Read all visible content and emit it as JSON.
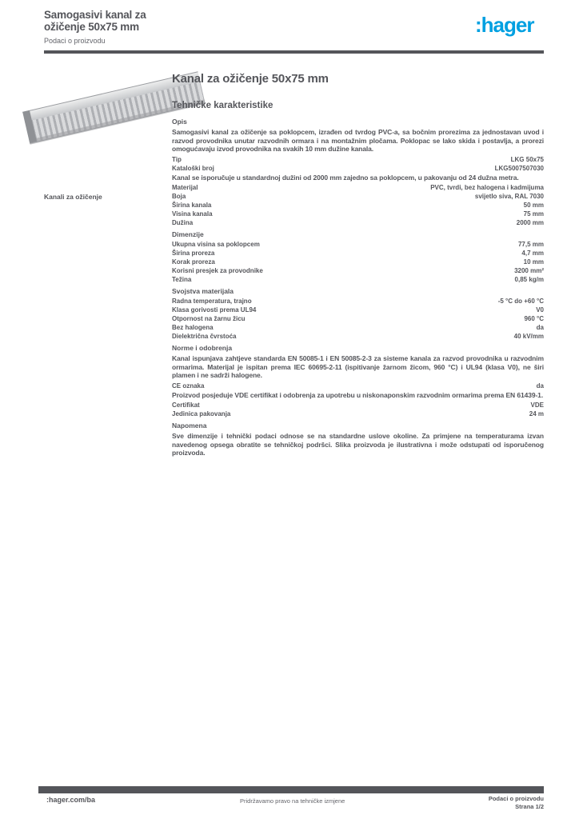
{
  "header": {
    "line1": "Samogasivi kanal za",
    "line2": "ožičenje 50x75 mm",
    "subtitle": "Podaci o proizvodu",
    "logo": ":hager",
    "logo_color": "#00a0e1"
  },
  "sidebar": {
    "category": "Kanali za ožičenje",
    "product_image": "slotted-wiring-duct-with-cover, light gray"
  },
  "main": {
    "title": "Kanal za ožičenje 50x75 mm",
    "section_heading": "Tehničke karakteristike"
  },
  "specs": [
    {
      "t": "head",
      "label": "Opis"
    },
    {
      "t": "para",
      "text": "Samogasivi kanal za ožičenje sa poklopcem, izrađen od tvrdog PVC-a, sa bočnim prorezima za jednostavan uvod i razvod provodnika unutar razvodnih ormara i na montažnim pločama. Poklopac se lako skida i postavlja, a prorezi omogućavaju izvod provodnika na svakih 10 mm dužine kanala."
    },
    {
      "t": "row",
      "label": "Tip",
      "value": "LKG 50x75"
    },
    {
      "t": "row",
      "label": "Kataloški broj",
      "value": "LKG5007507030"
    },
    {
      "t": "para",
      "text": "Kanal se isporučuje u standardnoj dužini od 2000 mm zajedno sa poklopcem, u pakovanju od 24 dužna metra."
    },
    {
      "t": "row",
      "label": "Materijal",
      "value": "PVC, tvrdi, bez halogena i kadmijuma"
    },
    {
      "t": "row",
      "label": "Boja",
      "value": "svijetlo siva, RAL 7030"
    },
    {
      "t": "row",
      "label": "Širina kanala",
      "value": "50 mm"
    },
    {
      "t": "row",
      "label": "Visina kanala",
      "value": "75 mm"
    },
    {
      "t": "row",
      "label": "Dužina",
      "value": "2000 mm"
    },
    {
      "t": "head",
      "label": "Dimenzije"
    },
    {
      "t": "row",
      "label": "Ukupna visina sa poklopcem",
      "value": "77,5 mm"
    },
    {
      "t": "row",
      "label": "Širina proreza",
      "value": "4,7 mm"
    },
    {
      "t": "row",
      "label": "Korak proreza",
      "value": "10 mm"
    },
    {
      "t": "row",
      "label": "Korisni presjek za provodnike",
      "value": "3200 mm²"
    },
    {
      "t": "row",
      "label": "Težina",
      "value": "0,85 kg/m"
    },
    {
      "t": "head",
      "label": "Svojstva materijala"
    },
    {
      "t": "row",
      "label": "Radna temperatura, trajno",
      "value": "-5 °C do +60 °C"
    },
    {
      "t": "row",
      "label": "Klasa gorivosti prema UL94",
      "value": "V0"
    },
    {
      "t": "row",
      "label": "Otpornost na žarnu žicu",
      "value": "960 °C"
    },
    {
      "t": "row",
      "label": "Bez halogena",
      "value": "da"
    },
    {
      "t": "row",
      "label": "Dielektrična čvrstoća",
      "value": "40 kV/mm"
    },
    {
      "t": "head",
      "label": "Norme i odobrenja"
    },
    {
      "t": "para",
      "text": "Kanal ispunjava zahtjeve standarda EN 50085-1 i EN 50085-2-3 za sisteme kanala za razvod provodnika u razvodnim ormarima. Materijal je ispitan prema IEC 60695-2-11 (ispitivanje žarnom žicom, 960 °C) i UL94 (klasa V0), ne širi plamen i ne sadrži halogene."
    },
    {
      "t": "row",
      "label": "CE oznaka",
      "value": "da"
    },
    {
      "t": "para",
      "text": "Proizvod posjeduje VDE certifikat i odobrenja za upotrebu u niskonaponskim razvodnim ormarima prema EN 61439-1."
    },
    {
      "t": "row",
      "label": "Certifikat",
      "value": "VDE"
    },
    {
      "t": "row",
      "label": "Jedinica pakovanja",
      "value": "24 m"
    },
    {
      "t": "head",
      "label": "Napomena"
    },
    {
      "t": "para",
      "text": "Sve dimenzije i tehnički podaci odnose se na standardne uslove okoline. Za primjene na temperaturama izvan navedenog opsega obratite se tehničkoj podršci. Slika proizvoda je ilustrativna i može odstupati od isporučenog proizvoda."
    }
  ],
  "footer": {
    "site": ":hager.com/ba",
    "note": "Pridržavamo pravo na tehničke izmjene",
    "info_line1": "Podaci o proizvodu",
    "info_line2": "Strana 1/2"
  },
  "colors": {
    "ink": "#54555a",
    "brand_blue": "#00a0e1",
    "duct_gray": "#c9cbce"
  }
}
